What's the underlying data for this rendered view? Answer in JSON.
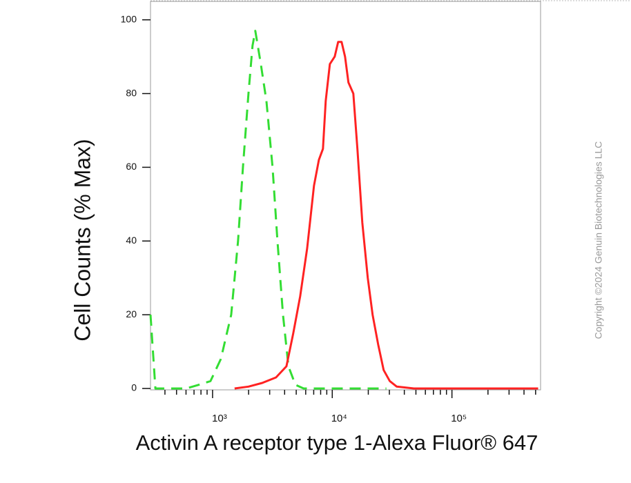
{
  "chart_data": {
    "type": "line",
    "xlabel": "Activin A receptor type 1-Alexa Fluor® 647",
    "ylabel": "Cell Counts (% Max)",
    "copyright": "Copyright ©2024 Genuin Biotechnologies LLC",
    "xscale": "log",
    "xlim": [
      303,
      550000
    ],
    "ylim": [
      0,
      105
    ],
    "xticks": [
      {
        "value": 1000,
        "label": "10³"
      },
      {
        "value": 10000,
        "label": "10⁴"
      },
      {
        "value": 100000,
        "label": "10⁵"
      }
    ],
    "xminorticks": [
      400,
      500,
      600,
      700,
      800,
      900,
      2000,
      3000,
      4000,
      5000,
      6000,
      7000,
      8000,
      9000,
      20000,
      30000,
      40000,
      50000,
      60000,
      70000,
      80000,
      90000,
      200000,
      300000,
      400000,
      500000
    ],
    "yticks": [
      0,
      20,
      40,
      60,
      80,
      100
    ],
    "series": [
      {
        "color": "#33dd33",
        "dash": true,
        "x": [
          303,
          333,
          406,
          604,
          767,
          961,
          1172,
          1432,
          1633,
          1793,
          1995,
          2158,
          2276,
          2531,
          2818,
          3170,
          3483,
          3873,
          4305,
          4920,
          5768,
          28300
        ],
        "values": [
          20,
          0,
          0,
          0,
          1,
          2,
          8,
          20,
          40,
          60,
          80,
          93,
          97,
          88,
          78,
          60,
          40,
          20,
          6,
          1,
          0,
          0
        ]
      },
      {
        "color": "#ff2222",
        "dash": false,
        "x": [
          1528,
          1995,
          2600,
          3388,
          4140,
          4723,
          5395,
          6166,
          7031,
          7727,
          8365,
          8820,
          9550,
          10475,
          11200,
          11970,
          12790,
          13650,
          14990,
          16220,
          17820,
          19810,
          21730,
          24160,
          26860,
          30250,
          34590,
          48170,
          525000
        ],
        "values": [
          0,
          0.5,
          1.5,
          3,
          6,
          15,
          25,
          38,
          55,
          62,
          65,
          78,
          88,
          90,
          94,
          94,
          90,
          83,
          80,
          65,
          45,
          30,
          20,
          12,
          5,
          2,
          0.5,
          0,
          0
        ]
      }
    ]
  }
}
